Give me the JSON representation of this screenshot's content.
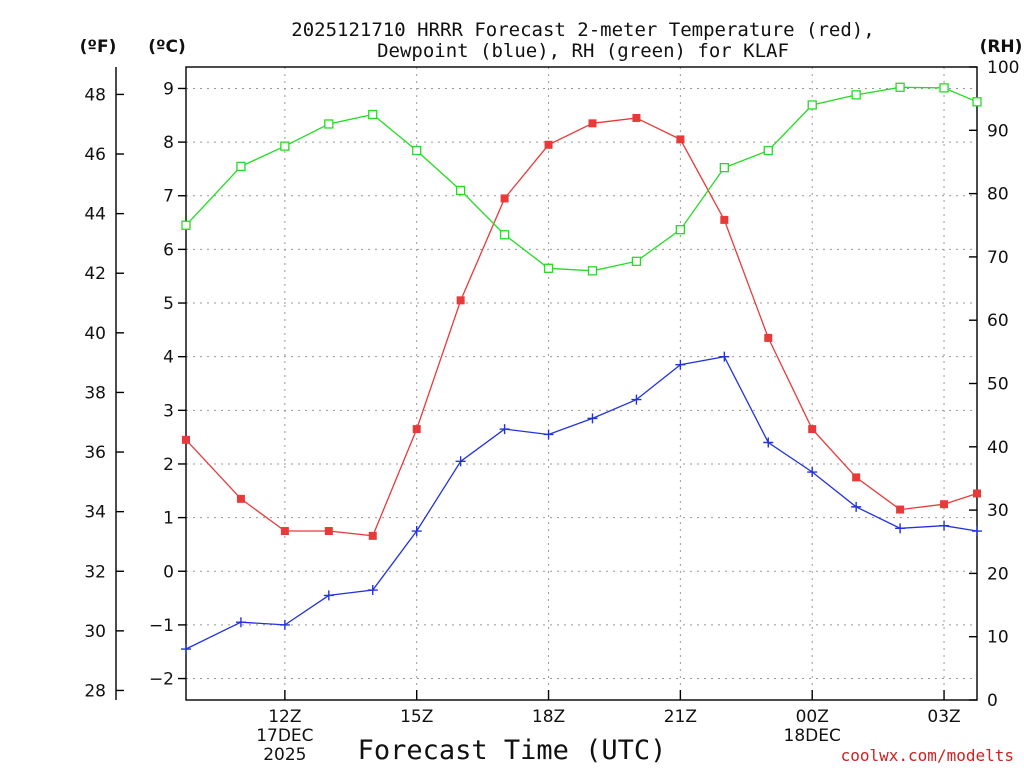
{
  "chart_data": {
    "type": "line",
    "title": [
      "2025121710 HRRR Forecast 2-meter Temperature (red),",
      "Dewpoint (blue), RH (green) for KLAF"
    ],
    "xlabel": "Forecast Time (UTC)",
    "credit": "coolwx.com/modelts",
    "left_unit_f": "(ºF)",
    "left_unit_c": "(ºC)",
    "right_unit": "(RH)",
    "x_range": [
      9.75,
      27.75
    ],
    "x_ticks": [
      {
        "x": 12,
        "lines": [
          "12Z",
          "17DEC",
          "2025"
        ]
      },
      {
        "x": 15,
        "lines": [
          "15Z"
        ]
      },
      {
        "x": 18,
        "lines": [
          "18Z"
        ]
      },
      {
        "x": 21,
        "lines": [
          "21Z"
        ]
      },
      {
        "x": 24,
        "lines": [
          "00Z",
          "18DEC"
        ]
      },
      {
        "x": 27,
        "lines": [
          "03Z"
        ]
      }
    ],
    "celsius_axis": {
      "range": [
        -2.4,
        9.4
      ],
      "ticks": [
        -2,
        -1,
        0,
        1,
        2,
        3,
        4,
        5,
        6,
        7,
        8,
        9
      ],
      "tick_labels": [
        "−2",
        "−1",
        "0",
        "1",
        "2",
        "3",
        "4",
        "5",
        "6",
        "7",
        "8",
        "9"
      ]
    },
    "fahrenheit_axis": {
      "ticks": [
        28,
        30,
        32,
        34,
        36,
        38,
        40,
        42,
        44,
        46,
        48
      ],
      "tick_labels": [
        "28",
        "30",
        "32",
        "34",
        "36",
        "38",
        "40",
        "42",
        "44",
        "46",
        "48"
      ]
    },
    "rh_axis": {
      "range": [
        0,
        100
      ],
      "ticks": [
        0,
        10,
        20,
        30,
        40,
        50,
        60,
        70,
        80,
        90,
        100
      ],
      "tick_labels": [
        "0",
        "10",
        "20",
        "30",
        "40",
        "50",
        "60",
        "70",
        "80",
        "90",
        "100"
      ]
    },
    "x": [
      9.75,
      11,
      12,
      13,
      14,
      15,
      16,
      17,
      18,
      19,
      20,
      21,
      22,
      23,
      24,
      25,
      26,
      27,
      27.75
    ],
    "series": [
      {
        "name": "Temperature",
        "axis": "C",
        "color": "#e83a3a",
        "marker": "filled-square",
        "values": [
          2.45,
          1.35,
          0.75,
          0.75,
          0.66,
          2.65,
          5.05,
          6.95,
          7.95,
          8.35,
          8.45,
          8.05,
          6.55,
          4.35,
          2.65,
          1.75,
          1.15,
          1.25,
          1.45
        ]
      },
      {
        "name": "Dewpoint",
        "axis": "C",
        "color": "#2233dd",
        "marker": "plus",
        "values": [
          -1.45,
          -0.95,
          -1.0,
          -0.45,
          -0.35,
          0.75,
          2.05,
          2.65,
          2.55,
          2.85,
          3.2,
          3.85,
          4.0,
          2.4,
          1.85,
          1.2,
          0.8,
          0.85,
          0.75
        ]
      },
      {
        "name": "RH",
        "axis": "RH",
        "color": "#22dd22",
        "marker": "open-square",
        "values": [
          75,
          84.3,
          87.5,
          91,
          92.5,
          86.8,
          80.5,
          73.5,
          68.2,
          67.8,
          69.3,
          74.3,
          84.1,
          86.8,
          94,
          95.6,
          96.8,
          96.7,
          94.5
        ]
      }
    ]
  }
}
